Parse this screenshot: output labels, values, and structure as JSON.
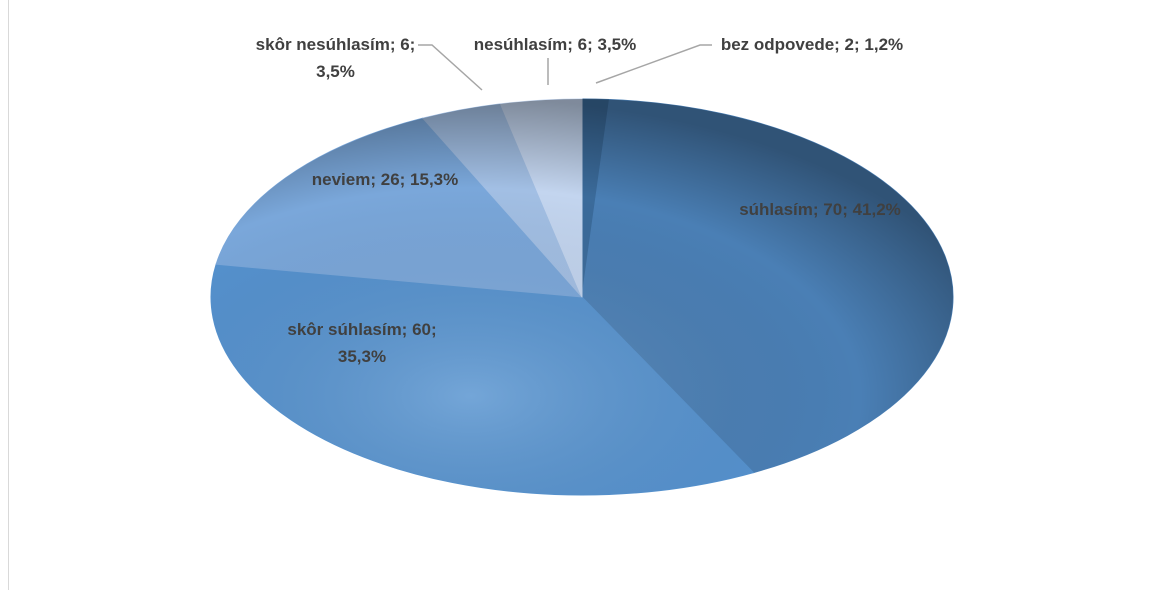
{
  "chart_data": {
    "type": "pie",
    "categories": [
      "bez odpovede",
      "súhlasím",
      "skôr súhlasím",
      "neviem",
      "skôr nesúhlasím",
      "nesúhlasím"
    ],
    "values": [
      2,
      70,
      60,
      26,
      6,
      6
    ],
    "value_labels": [
      "bez odpovede; 2; 1,2%",
      "súhlasím; 70; 41,2%",
      "skôr súhlasím; 60; 35,3%",
      "neviem; 26; 15,3%",
      "skôr nesúhlasím; 6; 3,5%",
      "nesúhlasím; 6; 3,5%"
    ],
    "colors": [
      "#3b6b9b",
      "#4a7fb5",
      "#5592cf",
      "#7aa7da",
      "#a2bfe4",
      "#c3d5ef"
    ]
  }
}
